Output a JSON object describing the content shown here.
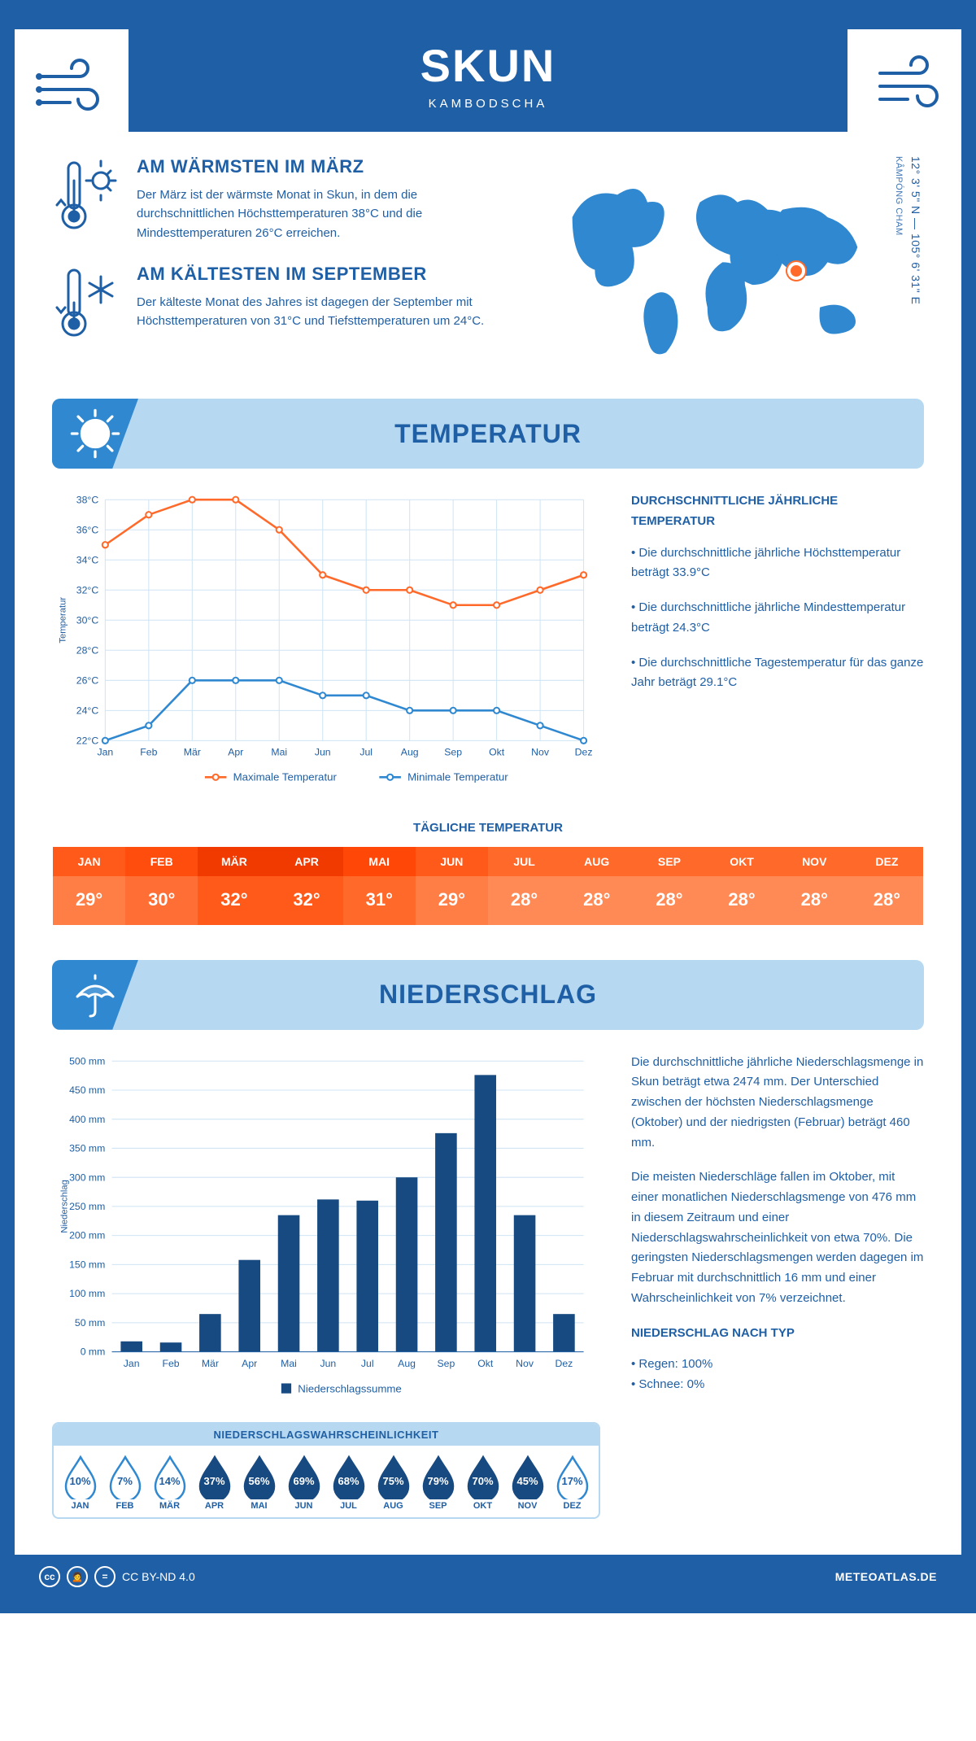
{
  "header": {
    "title": "SKUN",
    "country": "KAMBODSCHA"
  },
  "intro": {
    "warm": {
      "title": "AM WÄRMSTEN IM MÄRZ",
      "text": "Der März ist der wärmste Monat in Skun, in dem die durchschnittlichen Höchsttemperaturen 38°C und die Mindesttemperaturen 26°C erreichen."
    },
    "cold": {
      "title": "AM KÄLTESTEN IM SEPTEMBER",
      "text": "Der kälteste Monat des Jahres ist dagegen der September mit Höchsttemperaturen von 31°C und Tiefsttemperaturen um 24°C."
    },
    "coords_line": "12° 3' 5\" N — 105° 6' 31\" E",
    "region": "KÂMPÓNG CHAM"
  },
  "months": [
    "Jan",
    "Feb",
    "Mär",
    "Apr",
    "Mai",
    "Jun",
    "Jul",
    "Aug",
    "Sep",
    "Okt",
    "Nov",
    "Dez"
  ],
  "months_upper": [
    "JAN",
    "FEB",
    "MÄR",
    "APR",
    "MAI",
    "JUN",
    "JUL",
    "AUG",
    "SEP",
    "OKT",
    "NOV",
    "DEZ"
  ],
  "temperature": {
    "banner": "TEMPERATUR",
    "chart": {
      "type": "line",
      "y_min": 22,
      "y_max": 38,
      "y_step": 2,
      "y_ticks": [
        "22°C",
        "24°C",
        "26°C",
        "28°C",
        "30°C",
        "32°C",
        "34°C",
        "36°C",
        "38°C"
      ],
      "axis_label": "Temperatur",
      "series": [
        {
          "name": "Maximale Temperatur",
          "color": "#ff6a2b",
          "values": [
            35,
            37,
            38,
            38,
            36,
            33,
            32,
            32,
            31,
            31,
            32,
            33
          ]
        },
        {
          "name": "Minimale Temperatur",
          "color": "#2f88d0",
          "values": [
            22,
            23,
            26,
            26,
            26,
            25,
            25,
            24,
            24,
            24,
            23,
            22
          ]
        }
      ],
      "grid_color": "#cfe4f4",
      "line_width": 2.5,
      "marker": "circle",
      "marker_size": 3.5,
      "background": "#ffffff"
    },
    "side": {
      "heading": "DURCHSCHNITTLICHE JÄHRLICHE TEMPERATUR",
      "bullets": [
        "• Die durchschnittliche jährliche Höchsttemperatur beträgt 33.9°C",
        "• Die durchschnittliche jährliche Mindesttemperatur beträgt 24.3°C",
        "• Die durchschnittliche Tagestemperatur für das ganze Jahr beträgt 29.1°C"
      ]
    },
    "daily": {
      "title": "TÄGLICHE TEMPERATUR",
      "values": [
        "29°",
        "30°",
        "32°",
        "32°",
        "31°",
        "29°",
        "28°",
        "28°",
        "28°",
        "28°",
        "28°",
        "28°"
      ],
      "head_colors": [
        "#ff5a1a",
        "#ff4d0d",
        "#f03a00",
        "#f03a00",
        "#ff4808",
        "#ff5a1a",
        "#ff6a2b",
        "#ff6a2b",
        "#ff6a2b",
        "#ff6a2b",
        "#ff6a2b",
        "#ff6a2b"
      ],
      "cell_colors": [
        "#ff7e46",
        "#ff6e34",
        "#ff5a1a",
        "#ff5a1a",
        "#ff6a2b",
        "#ff7e46",
        "#ff8a55",
        "#ff8a55",
        "#ff8a55",
        "#ff8a55",
        "#ff8a55",
        "#ff8a55"
      ]
    }
  },
  "precip": {
    "banner": "NIEDERSCHLAG",
    "chart": {
      "type": "bar",
      "y_min": 0,
      "y_max": 500,
      "y_step": 50,
      "y_ticks": [
        "0 mm",
        "50 mm",
        "100 mm",
        "150 mm",
        "200 mm",
        "250 mm",
        "300 mm",
        "350 mm",
        "400 mm",
        "450 mm",
        "500 mm"
      ],
      "axis_label": "Niederschlag",
      "values": [
        18,
        16,
        65,
        158,
        235,
        262,
        260,
        300,
        376,
        476,
        235,
        65
      ],
      "bar_color": "#174a80",
      "grid_color": "#cfe4f4",
      "bar_width": 0.55,
      "legend": "Niederschlagssumme",
      "background": "#ffffff"
    },
    "side": {
      "p1": "Die durchschnittliche jährliche Niederschlagsmenge in Skun beträgt etwa 2474 mm. Der Unterschied zwischen der höchsten Niederschlagsmenge (Oktober) und der niedrigsten (Februar) beträgt 460 mm.",
      "p2": "Die meisten Niederschläge fallen im Oktober, mit einer monatlichen Niederschlagsmenge von 476 mm in diesem Zeitraum und einer Niederschlagswahrscheinlichkeit von etwa 70%. Die geringsten Niederschlagsmengen werden dagegen im Februar mit durchschnittlich 16 mm und einer Wahrscheinlichkeit von 7% verzeichnet.",
      "type_title": "NIEDERSCHLAG NACH TYP",
      "type_lines": [
        "• Regen: 100%",
        "• Schnee: 0%"
      ]
    },
    "prob": {
      "title": "NIEDERSCHLAGSWAHRSCHEINLICHKEIT",
      "values": [
        "10%",
        "7%",
        "14%",
        "37%",
        "56%",
        "69%",
        "68%",
        "75%",
        "79%",
        "70%",
        "45%",
        "17%"
      ],
      "fill_threshold": 30,
      "fill_color": "#174a80",
      "empty_stroke": "#2f88d0"
    }
  },
  "footer": {
    "license": "CC BY-ND 4.0",
    "brand": "METEOATLAS.DE"
  }
}
